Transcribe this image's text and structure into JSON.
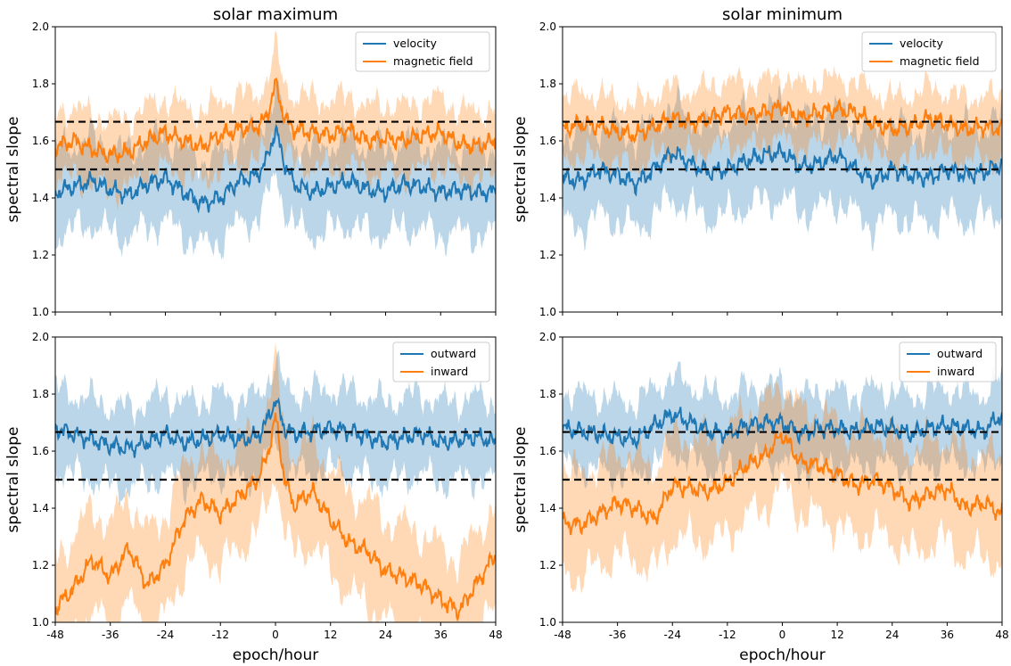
{
  "colors": {
    "blue": "#1f77b4",
    "orange": "#ff7f0e",
    "reference": "#000000"
  },
  "chart_data": [
    {
      "type": "line",
      "title": "solar maximum",
      "xlabel": "",
      "ylabel": "spectral slope",
      "xlim": [
        -48,
        48
      ],
      "ylim": [
        1.0,
        2.0
      ],
      "xticks": [
        -48,
        -36,
        -24,
        -12,
        0,
        12,
        24,
        36,
        48
      ],
      "yticks": [
        1.0,
        1.2,
        1.4,
        1.6,
        1.8,
        2.0
      ],
      "show_xtick_labels": false,
      "legend": "top-right",
      "reference_lines": [
        1.667,
        1.5
      ],
      "series": [
        {
          "name": "velocity",
          "color": "#1f77b4",
          "x": [
            -48,
            -44,
            -40,
            -36,
            -32,
            -28,
            -24,
            -20,
            -16,
            -12,
            -8,
            -4,
            -2,
            0,
            2,
            4,
            8,
            12,
            16,
            20,
            24,
            28,
            32,
            36,
            40,
            44,
            48
          ],
          "y": [
            1.42,
            1.44,
            1.46,
            1.43,
            1.41,
            1.45,
            1.47,
            1.42,
            1.38,
            1.4,
            1.46,
            1.48,
            1.53,
            1.64,
            1.52,
            1.45,
            1.42,
            1.44,
            1.46,
            1.43,
            1.42,
            1.45,
            1.44,
            1.42,
            1.43,
            1.42,
            1.42
          ],
          "band_width": 0.15
        },
        {
          "name": "magnetic field",
          "color": "#ff7f0e",
          "x": [
            -48,
            -44,
            -40,
            -36,
            -32,
            -28,
            -24,
            -20,
            -16,
            -12,
            -8,
            -4,
            -2,
            0,
            2,
            4,
            8,
            12,
            16,
            20,
            24,
            28,
            32,
            36,
            40,
            44,
            48
          ],
          "y": [
            1.58,
            1.6,
            1.57,
            1.55,
            1.56,
            1.6,
            1.63,
            1.6,
            1.58,
            1.62,
            1.64,
            1.65,
            1.68,
            1.8,
            1.68,
            1.64,
            1.63,
            1.62,
            1.64,
            1.6,
            1.61,
            1.6,
            1.62,
            1.63,
            1.59,
            1.58,
            1.6
          ],
          "band_width": 0.12
        }
      ]
    },
    {
      "type": "line",
      "title": "solar minimum",
      "xlabel": "",
      "ylabel": "spectral slope",
      "xlim": [
        -48,
        48
      ],
      "ylim": [
        1.0,
        2.0
      ],
      "xticks": [
        -48,
        -36,
        -24,
        -12,
        0,
        12,
        24,
        36,
        48
      ],
      "yticks": [
        1.0,
        1.2,
        1.4,
        1.6,
        1.8,
        2.0
      ],
      "show_xtick_labels": false,
      "legend": "top-right",
      "reference_lines": [
        1.667,
        1.5
      ],
      "series": [
        {
          "name": "velocity",
          "color": "#1f77b4",
          "x": [
            -48,
            -44,
            -40,
            -36,
            -32,
            -28,
            -24,
            -20,
            -16,
            -12,
            -8,
            -4,
            0,
            4,
            8,
            12,
            16,
            20,
            24,
            28,
            32,
            36,
            40,
            44,
            48
          ],
          "y": [
            1.47,
            1.46,
            1.5,
            1.48,
            1.45,
            1.5,
            1.56,
            1.52,
            1.49,
            1.5,
            1.53,
            1.55,
            1.56,
            1.51,
            1.52,
            1.55,
            1.5,
            1.46,
            1.5,
            1.48,
            1.47,
            1.5,
            1.48,
            1.49,
            1.52
          ],
          "band_width": 0.16
        },
        {
          "name": "magnetic field",
          "color": "#ff7f0e",
          "x": [
            -48,
            -44,
            -40,
            -36,
            -32,
            -28,
            -24,
            -20,
            -16,
            -12,
            -8,
            -4,
            0,
            4,
            8,
            12,
            16,
            20,
            24,
            28,
            32,
            36,
            40,
            44,
            48
          ],
          "y": [
            1.64,
            1.66,
            1.65,
            1.63,
            1.62,
            1.65,
            1.68,
            1.66,
            1.68,
            1.7,
            1.69,
            1.7,
            1.72,
            1.68,
            1.7,
            1.71,
            1.7,
            1.66,
            1.64,
            1.65,
            1.68,
            1.66,
            1.64,
            1.65,
            1.64
          ],
          "band_width": 0.11
        }
      ]
    },
    {
      "type": "line",
      "title": "",
      "xlabel": "epoch/hour",
      "ylabel": "spectral slope",
      "xlim": [
        -48,
        48
      ],
      "ylim": [
        1.0,
        2.0
      ],
      "xticks": [
        -48,
        -36,
        -24,
        -12,
        0,
        12,
        24,
        36,
        48
      ],
      "yticks": [
        1.0,
        1.2,
        1.4,
        1.6,
        1.8,
        2.0
      ],
      "show_xtick_labels": true,
      "legend": "top-right",
      "reference_lines": [
        1.667,
        1.5
      ],
      "series": [
        {
          "name": "outward",
          "color": "#1f77b4",
          "x": [
            -48,
            -44,
            -40,
            -36,
            -32,
            -28,
            -24,
            -20,
            -16,
            -12,
            -8,
            -4,
            -2,
            0,
            2,
            4,
            8,
            12,
            16,
            20,
            24,
            28,
            32,
            36,
            40,
            44,
            48
          ],
          "y": [
            1.68,
            1.66,
            1.64,
            1.62,
            1.61,
            1.63,
            1.66,
            1.63,
            1.64,
            1.66,
            1.64,
            1.65,
            1.7,
            1.78,
            1.68,
            1.66,
            1.67,
            1.68,
            1.67,
            1.65,
            1.63,
            1.65,
            1.66,
            1.63,
            1.64,
            1.65,
            1.63
          ],
          "band_width": 0.14
        },
        {
          "name": "inward",
          "color": "#ff7f0e",
          "x": [
            -48,
            -44,
            -40,
            -36,
            -32,
            -28,
            -24,
            -20,
            -16,
            -12,
            -8,
            -4,
            -2,
            0,
            2,
            4,
            8,
            12,
            16,
            20,
            24,
            28,
            32,
            36,
            40,
            44,
            48
          ],
          "y": [
            1.05,
            1.12,
            1.22,
            1.16,
            1.26,
            1.13,
            1.2,
            1.36,
            1.43,
            1.38,
            1.44,
            1.5,
            1.57,
            1.72,
            1.5,
            1.41,
            1.46,
            1.36,
            1.28,
            1.25,
            1.18,
            1.16,
            1.13,
            1.08,
            1.04,
            1.14,
            1.24
          ],
          "band_width": 0.18
        }
      ]
    },
    {
      "type": "line",
      "title": "",
      "xlabel": "epoch/hour",
      "ylabel": "spectral slope",
      "xlim": [
        -48,
        48
      ],
      "ylim": [
        1.0,
        2.0
      ],
      "xticks": [
        -48,
        -36,
        -24,
        -12,
        0,
        12,
        24,
        36,
        48
      ],
      "yticks": [
        1.0,
        1.2,
        1.4,
        1.6,
        1.8,
        2.0
      ],
      "show_xtick_labels": true,
      "legend": "top-right",
      "reference_lines": [
        1.667,
        1.5
      ],
      "series": [
        {
          "name": "outward",
          "color": "#1f77b4",
          "x": [
            -48,
            -44,
            -40,
            -36,
            -32,
            -28,
            -24,
            -20,
            -16,
            -12,
            -8,
            -4,
            0,
            4,
            8,
            12,
            16,
            20,
            24,
            28,
            32,
            36,
            40,
            44,
            48
          ],
          "y": [
            1.68,
            1.67,
            1.66,
            1.65,
            1.64,
            1.69,
            1.73,
            1.7,
            1.67,
            1.66,
            1.69,
            1.7,
            1.7,
            1.66,
            1.68,
            1.68,
            1.67,
            1.69,
            1.68,
            1.66,
            1.68,
            1.69,
            1.68,
            1.67,
            1.73
          ],
          "band_width": 0.13
        },
        {
          "name": "inward",
          "color": "#ff7f0e",
          "x": [
            -48,
            -44,
            -40,
            -36,
            -32,
            -28,
            -24,
            -20,
            -16,
            -12,
            -8,
            -4,
            0,
            4,
            8,
            12,
            16,
            20,
            24,
            28,
            32,
            36,
            40,
            44,
            48
          ],
          "y": [
            1.35,
            1.34,
            1.38,
            1.42,
            1.4,
            1.36,
            1.48,
            1.47,
            1.46,
            1.49,
            1.55,
            1.58,
            1.66,
            1.56,
            1.55,
            1.52,
            1.48,
            1.5,
            1.47,
            1.42,
            1.45,
            1.47,
            1.4,
            1.42,
            1.38
          ],
          "band_width": 0.18
        }
      ]
    }
  ]
}
